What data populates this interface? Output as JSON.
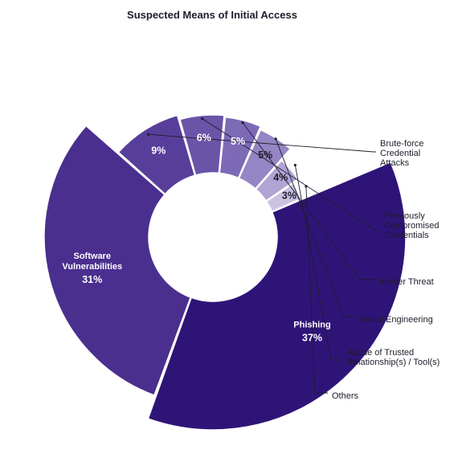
{
  "chart_data": {
    "type": "pie",
    "title": "Suspected Means of Initial Access",
    "slices": [
      {
        "label": "Software Vulnerabilities",
        "lines": [
          "Software",
          "Vulnerabilities"
        ],
        "value": 31,
        "value_label": "31%",
        "color": "#4a2f8f",
        "text_color": "#ffffff",
        "label_placement": "inside"
      },
      {
        "label": "Brute-force Credential Attacks",
        "lines": [
          "Brute-force",
          "Credential",
          "Attacks"
        ],
        "value": 9,
        "value_label": "9%",
        "color": "#573e9a",
        "text_color": "#ffffff",
        "label_placement": "outside"
      },
      {
        "label": "Previously Compromised Credentials",
        "lines": [
          "Previously",
          "Compromised",
          "Credentials"
        ],
        "value": 6,
        "value_label": "6%",
        "color": "#6a54a8",
        "text_color": "#ffffff",
        "label_placement": "outside"
      },
      {
        "label": "Insider Threat",
        "lines": [
          "Insider Threat"
        ],
        "value": 5,
        "value_label": "5%",
        "color": "#7d6ab6",
        "text_color": "#ffffff",
        "label_placement": "outside"
      },
      {
        "label": "Social Engineering",
        "lines": [
          "Social Engineering"
        ],
        "value": 5,
        "value_label": "5%",
        "color": "#9585c4",
        "text_color": "#1d1d2b",
        "label_placement": "outside"
      },
      {
        "label": "Abuse of Trusted Relationship(s) / Tool(s)",
        "lines": [
          "Abuse of Trusted",
          "Relationship(s) / Tool(s)"
        ],
        "value": 4,
        "value_label": "4%",
        "color": "#b0a4d4",
        "text_color": "#1d1d2b",
        "label_placement": "outside"
      },
      {
        "label": "Others",
        "lines": [
          "Others"
        ],
        "value": 3,
        "value_label": "3%",
        "color": "#cbc2e3",
        "text_color": "#1d1d2b",
        "label_placement": "outside"
      },
      {
        "label": "Phishing",
        "lines": [
          "Phishing"
        ],
        "value": 37,
        "value_label": "37%",
        "color": "#2f1478",
        "text_color": "#ffffff",
        "label_placement": "inside"
      }
    ],
    "legend": "none"
  }
}
